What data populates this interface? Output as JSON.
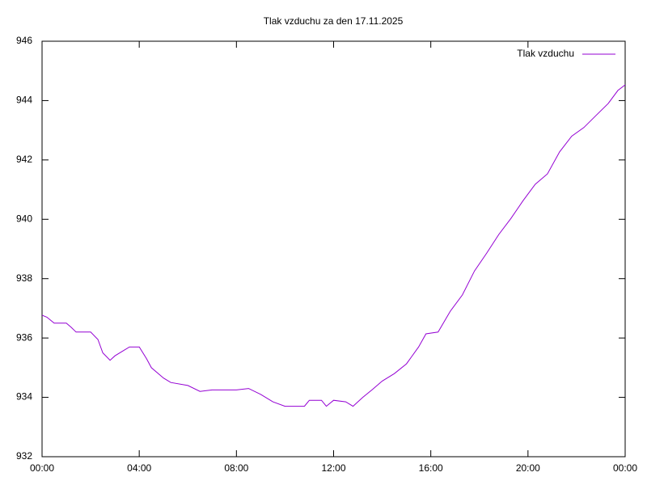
{
  "chart_data": {
    "type": "line",
    "title": "Tlak vzduchu za den 17.11.2025",
    "legend": "top-right",
    "x": [
      0,
      0.2,
      0.5,
      1,
      1.2,
      1.4,
      2,
      2.3,
      2.5,
      2.8,
      3.0,
      3.3,
      3.6,
      4,
      4.3,
      4.5,
      5,
      5.3,
      6,
      6.5,
      7,
      8,
      8.5,
      9,
      9.5,
      10,
      10.8,
      11,
      11.5,
      11.7,
      12,
      12.5,
      12.8,
      13.2,
      13.6,
      14,
      14.5,
      15,
      15.5,
      15.8,
      16.3,
      16.8,
      17.3,
      17.8,
      18.3,
      18.8,
      19.3,
      19.8,
      20.3,
      20.8,
      21.3,
      21.8,
      22.3,
      22.8,
      23.3,
      23.7,
      24
    ],
    "series": [
      {
        "name": "Tlak vzduchu",
        "color": "#9400d3",
        "values": [
          936.77,
          936.7,
          936.5,
          936.5,
          936.36,
          936.2,
          936.2,
          935.95,
          935.5,
          935.25,
          935.4,
          935.55,
          935.7,
          935.7,
          935.3,
          935.0,
          934.65,
          934.5,
          934.4,
          934.2,
          934.25,
          934.25,
          934.3,
          934.1,
          933.85,
          933.7,
          933.7,
          933.9,
          933.9,
          933.7,
          933.9,
          933.85,
          933.7,
          934.0,
          934.27,
          934.55,
          934.8,
          935.13,
          935.7,
          936.14,
          936.2,
          936.9,
          937.45,
          938.26,
          938.86,
          939.49,
          940.03,
          940.63,
          941.18,
          941.53,
          942.27,
          942.8,
          943.09,
          943.5,
          943.9,
          944.34,
          944.53
        ]
      }
    ],
    "xlim": [
      0,
      24
    ],
    "xticks": [
      {
        "value": 0,
        "label": "00:00"
      },
      {
        "value": 4,
        "label": "04:00"
      },
      {
        "value": 8,
        "label": "08:00"
      },
      {
        "value": 12,
        "label": "12:00"
      },
      {
        "value": 16,
        "label": "16:00"
      },
      {
        "value": 20,
        "label": "20:00"
      },
      {
        "value": 24,
        "label": "00:00"
      }
    ],
    "ylim": [
      932,
      946
    ],
    "yticks": [
      932,
      934,
      936,
      938,
      940,
      942,
      944,
      946
    ]
  }
}
